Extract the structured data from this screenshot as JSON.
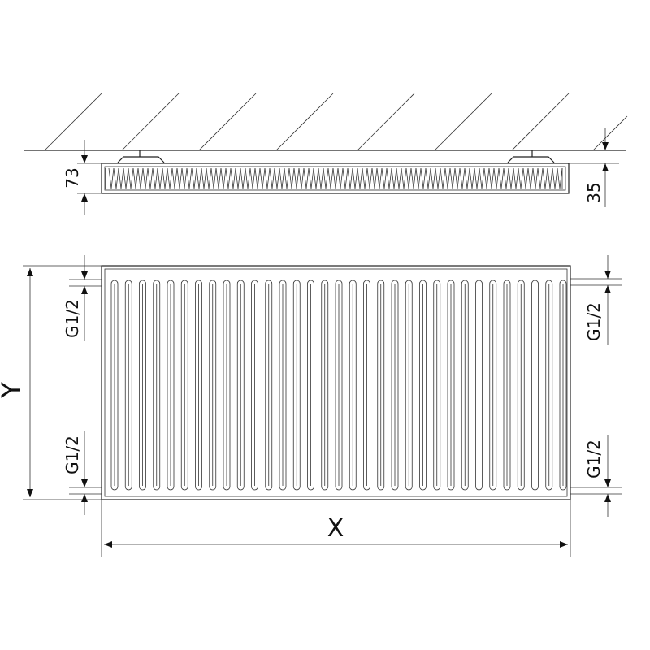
{
  "dimensions": {
    "depth_total": "73",
    "wall_gap": "35",
    "height_label": "Y",
    "width_label": "X",
    "connection_top_left": "G1/2",
    "connection_bottom_left": "G1/2",
    "connection_top_right": "G1/2",
    "connection_bottom_right": "G1/2"
  },
  "colors": {
    "line": "#222222",
    "background": "#ffffff"
  }
}
